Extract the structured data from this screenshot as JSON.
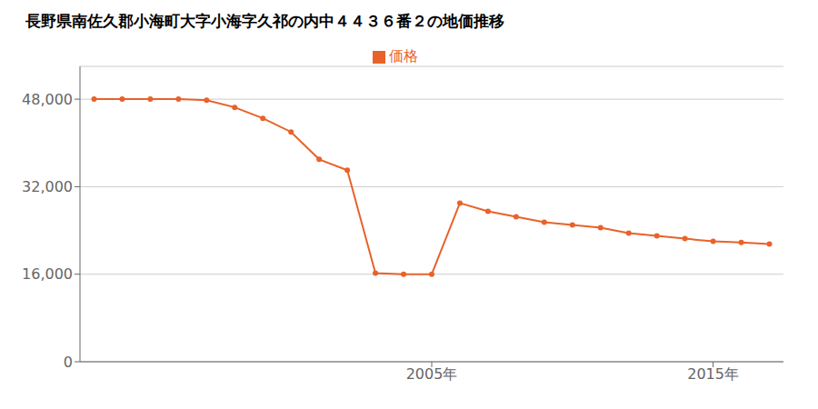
{
  "chart_data": {
    "type": "line",
    "title": "長野県南佐久郡小海町大字小海字久祁の内中４４３６番２の地価推移",
    "x": [
      1993,
      1994,
      1995,
      1996,
      1997,
      1998,
      1999,
      2000,
      2001,
      2002,
      2003,
      2004,
      2005,
      2006,
      2007,
      2008,
      2009,
      2010,
      2011,
      2012,
      2013,
      2014,
      2015,
      2016,
      2017
    ],
    "series": [
      {
        "name": "価格",
        "color": "#e8622a",
        "marker": "circle",
        "values": [
          48000,
          48000,
          48000,
          48000,
          47800,
          46500,
          44500,
          42000,
          37000,
          35000,
          16200,
          16000,
          16000,
          29000,
          27500,
          26500,
          25500,
          25000,
          24500,
          23500,
          23000,
          22500,
          22000,
          21800,
          21500
        ]
      }
    ],
    "xlim": [
      1992.5,
      2017.5
    ],
    "xticks": [
      {
        "value": 2005,
        "label": "2005年"
      },
      {
        "value": 2015,
        "label": "2015年"
      }
    ],
    "ylim": [
      0,
      54000
    ],
    "yticks": [
      0,
      {
        "value": 16000,
        "label": "16,000"
      },
      {
        "value": 32000,
        "label": "32,000"
      },
      {
        "value": 48000,
        "label": "48,000"
      }
    ],
    "grid": true,
    "legend": "top"
  }
}
